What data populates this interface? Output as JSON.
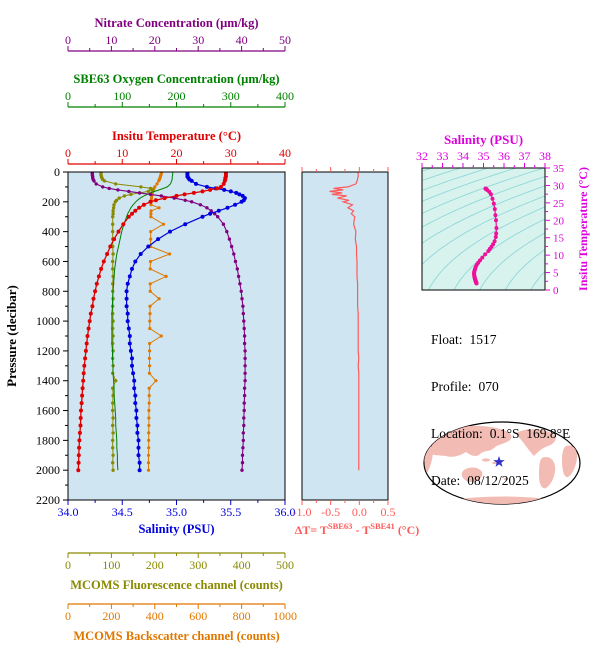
{
  "figure": {
    "background": "#ffffff"
  },
  "float_info": {
    "rows": [
      {
        "label": "Float:",
        "value": "1517"
      },
      {
        "label": "Profile:",
        "value": "070"
      },
      {
        "label": "Location:",
        "value": "0.1°S  169.8°E"
      },
      {
        "label": "Date:",
        "value": "08/12/2025"
      }
    ]
  },
  "map": {
    "ocean": "#ffffff",
    "land": "#f2bcb4",
    "outline": "#000000",
    "star": "#3333cc"
  },
  "chart_data": [
    {
      "id": "profile-plot",
      "type": "line",
      "ylabel": "Pressure (decibar)",
      "ylim": [
        0,
        2200
      ],
      "y_ticks": [
        0,
        200,
        400,
        600,
        800,
        1000,
        1200,
        1400,
        1600,
        1800,
        2000,
        2200
      ],
      "plot_bg": "#cfe6f2",
      "pressure": [
        0,
        10,
        20,
        30,
        40,
        50,
        60,
        80,
        100,
        110,
        120,
        130,
        140,
        150,
        160,
        175,
        190,
        200,
        220,
        240,
        260,
        280,
        300,
        350,
        400,
        450,
        500,
        550,
        600,
        650,
        700,
        750,
        800,
        850,
        900,
        950,
        1000,
        1050,
        1100,
        1150,
        1200,
        1250,
        1300,
        1350,
        1400,
        1450,
        1500,
        1550,
        1600,
        1650,
        1700,
        1750,
        1800,
        1850,
        1900,
        1950,
        2000
      ],
      "series": [
        {
          "key": "nitrate",
          "name": "Nitrate Concentration (µm/kg)",
          "color": "#800080",
          "xlim": [
            0,
            50
          ],
          "tick_labels": [
            "0",
            "10",
            "20",
            "30",
            "40",
            "50"
          ],
          "axis": "top1",
          "markers": true,
          "values": [
            5.6,
            5.6,
            5.6,
            5.7,
            5.7,
            5.8,
            6.0,
            6.5,
            8.0,
            9.5,
            11.5,
            14.0,
            16.5,
            19.0,
            21.5,
            24.5,
            27.0,
            28.5,
            30.5,
            32.0,
            33.0,
            33.8,
            34.5,
            35.8,
            36.6,
            37.2,
            37.7,
            38.2,
            38.6,
            39.0,
            39.3,
            39.6,
            39.9,
            40.1,
            40.3,
            40.4,
            40.5,
            40.6,
            40.7,
            40.7,
            40.8,
            40.8,
            40.8,
            40.8,
            40.8,
            40.7,
            40.7,
            40.6,
            40.6,
            40.5,
            40.5,
            40.4,
            40.4,
            40.3,
            40.2,
            40.2,
            40.1
          ]
        },
        {
          "key": "oxygen",
          "name": "SBE63 Oxygen Concentration (µm/kg)",
          "color": "#008000",
          "xlim": [
            0,
            400
          ],
          "tick_labels": [
            "0",
            "100",
            "200",
            "300",
            "400"
          ],
          "axis": "top2",
          "markers": false,
          "values": [
            193,
            193,
            193,
            192,
            192,
            192,
            191,
            189,
            183,
            176,
            168,
            160,
            152,
            146,
            140,
            133,
            128,
            125,
            120,
            116,
            113,
            110,
            108,
            103,
            99,
            96,
            93,
            90,
            88,
            86,
            85,
            84,
            83,
            82,
            82,
            81,
            81,
            81,
            81,
            81,
            82,
            82,
            83,
            83,
            84,
            85,
            85,
            86,
            87,
            88,
            88,
            89,
            90,
            90,
            91,
            91,
            92
          ]
        },
        {
          "key": "temperature",
          "name": "Insitu Temperature (°C)",
          "color": "#e00000",
          "xlim": [
            0,
            40
          ],
          "tick_labels": [
            "0",
            "10",
            "20",
            "30",
            "40"
          ],
          "axis": "top3",
          "markers": true,
          "values": [
            29.1,
            29.1,
            29.1,
            29.1,
            29.0,
            29.0,
            28.9,
            28.7,
            28.2,
            27.5,
            26.2,
            24.8,
            23.2,
            21.5,
            20.0,
            17.8,
            16.2,
            15.2,
            14.0,
            13.1,
            12.4,
            11.8,
            11.2,
            10.2,
            9.3,
            8.5,
            7.8,
            7.2,
            6.6,
            6.1,
            5.7,
            5.3,
            5.0,
            4.7,
            4.5,
            4.2,
            4.0,
            3.8,
            3.6,
            3.45,
            3.3,
            3.15,
            3.0,
            2.9,
            2.8,
            2.7,
            2.6,
            2.5,
            2.4,
            2.35,
            2.3,
            2.2,
            2.1,
            2.05,
            2.0,
            1.95,
            1.9
          ]
        },
        {
          "key": "salinity",
          "name": "Salinity (PSU)",
          "color": "#0000dd",
          "xlim": [
            34,
            36
          ],
          "tick_labels": [
            "34.0",
            "34.5",
            "35.0",
            "35.5",
            "36.0"
          ],
          "axis": "bottom1",
          "markers": true,
          "values": [
            35.1,
            35.1,
            35.1,
            35.1,
            35.11,
            35.12,
            35.14,
            35.18,
            35.28,
            35.36,
            35.44,
            35.5,
            35.55,
            35.58,
            35.61,
            35.63,
            35.62,
            35.6,
            35.54,
            35.47,
            35.39,
            35.31,
            35.24,
            35.08,
            34.94,
            34.83,
            34.74,
            34.67,
            34.62,
            34.59,
            34.57,
            34.55,
            34.54,
            34.54,
            34.54,
            34.55,
            34.55,
            34.56,
            34.57,
            34.57,
            34.58,
            34.59,
            34.59,
            34.6,
            34.61,
            34.61,
            34.62,
            34.62,
            34.63,
            34.63,
            34.64,
            34.64,
            34.65,
            34.65,
            34.65,
            34.66,
            34.66
          ]
        },
        {
          "key": "fluorescence",
          "name": "MCOMS Fluorescence channel (counts)",
          "color": "#8a8a00",
          "xlim": [
            0,
            500
          ],
          "tick_labels": [
            "0",
            "100",
            "200",
            "300",
            "400",
            "500"
          ],
          "axis": "bottom2",
          "markers": true,
          "values": [
            76,
            76,
            76,
            77,
            78,
            80,
            84,
            110,
            168,
            190,
            196,
            185,
            165,
            145,
            130,
            118,
            112,
            109,
            106,
            105,
            104,
            104,
            103,
            103,
            103,
            103,
            103,
            104,
            103,
            103,
            104,
            103,
            103,
            104,
            103,
            103,
            104,
            103,
            104,
            103,
            104,
            103,
            104,
            103,
            110,
            103,
            104,
            103,
            103,
            104,
            103,
            104,
            103,
            103,
            104,
            103,
            104
          ]
        },
        {
          "key": "backscatter",
          "name": "MCOMS Backscatter channel (counts)",
          "color": "#e07800",
          "xlim": [
            0,
            1000
          ],
          "tick_labels": [
            "0",
            "200",
            "400",
            "600",
            "800",
            "1000"
          ],
          "axis": "bottom3",
          "markers": true,
          "values": [
            432,
            430,
            428,
            426,
            424,
            421,
            418,
            410,
            400,
            396,
            392,
            390,
            388,
            387,
            386,
            385,
            384,
            384,
            383,
            420,
            383,
            382,
            382,
            440,
            381,
            381,
            380,
            468,
            380,
            379,
            452,
            379,
            379,
            420,
            378,
            378,
            377,
            377,
            430,
            376,
            376,
            375,
            376,
            375,
            405,
            374,
            374,
            374,
            373,
            373,
            373,
            372,
            372,
            372,
            371,
            371,
            371
          ]
        }
      ]
    },
    {
      "id": "delta-t-plot",
      "type": "line",
      "xlabel_parts": {
        "pre": "ΔT= T",
        "sup1": "SBE63",
        "mid": " - T",
        "sup2": "SBE41",
        "post": " (°C)"
      },
      "xlim": [
        -1.0,
        0.5
      ],
      "tick_labels": [
        "-1.0",
        "-0.5",
        "0.0",
        "0.5"
      ],
      "color": "#ff5a5a",
      "plot_bg": "#cfe6f2",
      "values": [
        -0.02,
        -0.02,
        -0.02,
        -0.02,
        -0.03,
        -0.03,
        -0.04,
        -0.06,
        -0.2,
        -0.45,
        -0.28,
        -0.52,
        -0.3,
        -0.48,
        -0.22,
        -0.38,
        -0.18,
        -0.28,
        -0.12,
        -0.2,
        -0.1,
        -0.14,
        -0.08,
        -0.1,
        -0.06,
        -0.07,
        -0.05,
        -0.05,
        -0.04,
        -0.04,
        -0.04,
        -0.03,
        -0.03,
        -0.03,
        -0.03,
        -0.02,
        -0.02,
        -0.02,
        -0.02,
        -0.02,
        -0.02,
        -0.01,
        -0.02,
        -0.01,
        -0.01,
        -0.01,
        -0.01,
        -0.01,
        -0.01,
        -0.01,
        -0.01,
        -0.01,
        -0.01,
        -0.01,
        -0.01,
        -0.01,
        -0.01
      ]
    },
    {
      "id": "ts-diagram",
      "type": "scatter",
      "title": "Salinity (PSU)",
      "xlim": [
        32,
        38
      ],
      "x_tick_labels": [
        "32",
        "33",
        "34",
        "35",
        "36",
        "37",
        "38"
      ],
      "ylabel": "Insitu Temperature (°C)",
      "ylim": [
        0,
        35
      ],
      "y_tick_labels": [
        "0",
        "5",
        "10",
        "15",
        "20",
        "25",
        "30",
        "35"
      ],
      "axis_color": "#dd00dd",
      "dot_color": "#ee1199",
      "contour_color": "#8fd8d8",
      "plot_bg": "#d8f3ee",
      "contour_sigma_values": [
        18,
        19,
        20,
        21,
        22,
        23,
        24,
        25,
        26,
        27,
        28,
        29,
        30
      ]
    }
  ]
}
